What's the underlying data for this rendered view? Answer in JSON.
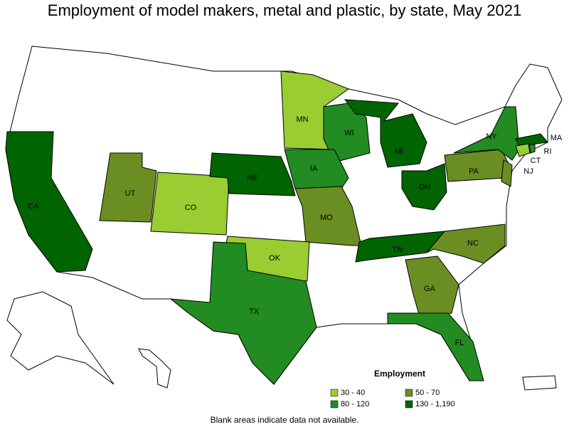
{
  "title": "Employment of model makers, metal and plastic, by state, May 2021",
  "legend": {
    "title": "Employment",
    "items": [
      {
        "label": "30 - 40",
        "color": "#9acd32"
      },
      {
        "label": "50 - 70",
        "color": "#6b8e23"
      },
      {
        "label": "80 - 120",
        "color": "#228b22"
      },
      {
        "label": "130 - 1,190",
        "color": "#006400"
      }
    ]
  },
  "states": [
    {
      "label": "CA",
      "bin": 3
    },
    {
      "label": "UT",
      "bin": 1
    },
    {
      "label": "CO",
      "bin": 0
    },
    {
      "label": "NE",
      "bin": 3
    },
    {
      "label": "MN",
      "bin": 0
    },
    {
      "label": "WI",
      "bin": 2
    },
    {
      "label": "IA",
      "bin": 2
    },
    {
      "label": "MO",
      "bin": 1
    },
    {
      "label": "OK",
      "bin": 0
    },
    {
      "label": "TX",
      "bin": 2
    },
    {
      "label": "MI",
      "bin": 3
    },
    {
      "label": "OH",
      "bin": 3
    },
    {
      "label": "TN",
      "bin": 3
    },
    {
      "label": "NC",
      "bin": 1
    },
    {
      "label": "GA",
      "bin": 1
    },
    {
      "label": "FL",
      "bin": 2
    },
    {
      "label": "PA",
      "bin": 1
    },
    {
      "label": "NY",
      "bin": 2
    },
    {
      "label": "NJ",
      "bin": 1
    },
    {
      "label": "MA",
      "bin": 3
    },
    {
      "label": "CT",
      "bin": 0
    },
    {
      "label": "RI",
      "bin": 2
    }
  ],
  "footnote": "Blank areas indicate data not available."
}
